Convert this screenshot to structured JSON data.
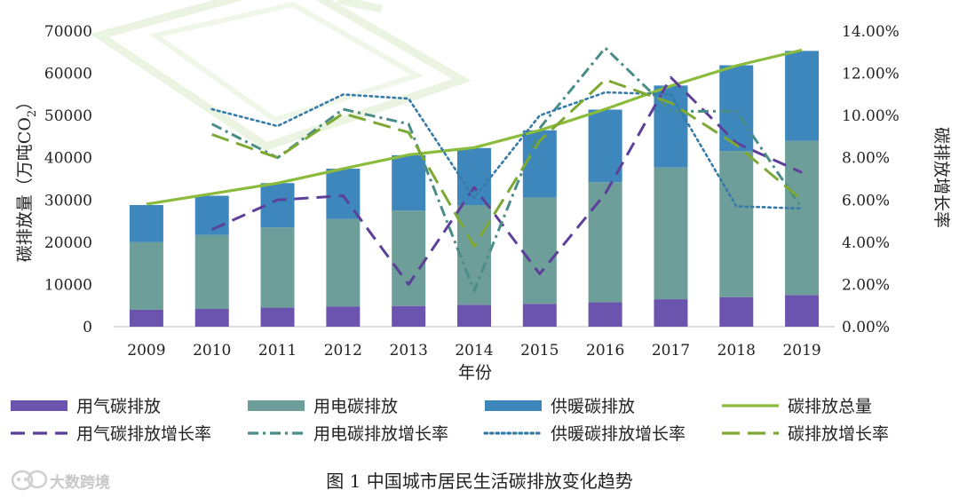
{
  "caption": "图 1 中国城市居民生活碳排放变化趋势",
  "watermark": "大数跨境",
  "colors": {
    "gas": "#6b54ae",
    "elec": "#6e9e99",
    "heat": "#3d87bd",
    "total": "#8bbb3d",
    "gas_rate": "#5c3f99",
    "elec_rate": "#4a8c86",
    "heat_rate": "#357aa8",
    "total_rate": "#7da833"
  },
  "chart_data": {
    "type": "bar+line",
    "title": "",
    "xlabel": "年份",
    "ylabel_left": "碳排放量（万吨CO",
    "ylabel_left_sub": "2",
    "ylabel_left_end": "）",
    "ylabel_right": "碳排放增长率",
    "categories": [
      "2009",
      "2010",
      "2011",
      "2012",
      "2013",
      "2014",
      "2015",
      "2016",
      "2017",
      "2018",
      "2019"
    ],
    "ylim_left": [
      0,
      70000
    ],
    "yticks_left": [
      "0",
      "10000",
      "20000",
      "30000",
      "40000",
      "50000",
      "60000",
      "70000"
    ],
    "ylim_right": [
      0,
      14
    ],
    "yticks_right": [
      "0.00%",
      "2.00%",
      "4.00%",
      "6.00%",
      "8.00%",
      "10.00%",
      "12.00%",
      "14.00%"
    ],
    "bar_series": [
      {
        "name": "用气碳排放",
        "color_key": "gas",
        "values": [
          4000,
          4200,
          4500,
          4800,
          4900,
          5200,
          5400,
          5800,
          6500,
          7000,
          7500
        ]
      },
      {
        "name": "用电碳排放",
        "color_key": "elec",
        "values": [
          16000,
          17500,
          19000,
          20700,
          22600,
          23600,
          25200,
          28400,
          31200,
          34600,
          36500
        ]
      },
      {
        "name": "供暖碳排放",
        "color_key": "heat",
        "values": [
          8800,
          9300,
          10500,
          11900,
          13100,
          13500,
          15900,
          17200,
          19400,
          20300,
          21300
        ]
      }
    ],
    "total_series": {
      "name": "碳排放总量",
      "color_key": "total",
      "values": [
        29000,
        31500,
        34000,
        37400,
        40700,
        42400,
        46500,
        51500,
        57000,
        61800,
        65500
      ]
    },
    "rate_series": [
      {
        "name": "用气碳排放增长率",
        "color_key": "gas_rate",
        "dash": "longdash",
        "values": [
          null,
          4.6,
          6.0,
          6.2,
          2.0,
          6.6,
          2.5,
          6.3,
          11.8,
          8.7,
          7.3
        ]
      },
      {
        "name": "用电碳排放增长率",
        "color_key": "elec_rate",
        "dash": "dashdot",
        "values": [
          null,
          9.6,
          8.0,
          10.3,
          9.6,
          1.7,
          9.4,
          13.2,
          10.2,
          10.2,
          5.6
        ]
      },
      {
        "name": "供暖碳排放增长率",
        "color_key": "heat_rate",
        "dash": "dot",
        "values": [
          null,
          10.3,
          9.5,
          11.0,
          10.8,
          6.1,
          10.0,
          11.1,
          11.0,
          5.7,
          5.6
        ]
      },
      {
        "name": "碳排放增长率",
        "color_key": "total_rate",
        "dash": "dash",
        "values": [
          null,
          9.1,
          8.0,
          10.1,
          9.2,
          3.8,
          8.8,
          11.7,
          10.6,
          8.6,
          6.0
        ]
      }
    ],
    "legend": [
      {
        "label": "用气碳排放",
        "kind": "bar",
        "color_key": "gas"
      },
      {
        "label": "用电碳排放",
        "kind": "bar",
        "color_key": "elec"
      },
      {
        "label": "供暖碳排放",
        "kind": "bar",
        "color_key": "heat"
      },
      {
        "label": "碳排放总量",
        "kind": "line",
        "color_key": "total",
        "dash": "solid"
      },
      {
        "label": "用气碳排放增长率",
        "kind": "line",
        "color_key": "gas_rate",
        "dash": "longdash"
      },
      {
        "label": "用电碳排放增长率",
        "kind": "line",
        "color_key": "elec_rate",
        "dash": "dashdot"
      },
      {
        "label": "供暖碳排放增长率",
        "kind": "line",
        "color_key": "heat_rate",
        "dash": "dot"
      },
      {
        "label": "碳排放增长率",
        "kind": "line",
        "color_key": "total_rate",
        "dash": "dash"
      }
    ],
    "legend_position": "bottom",
    "grid": false
  }
}
